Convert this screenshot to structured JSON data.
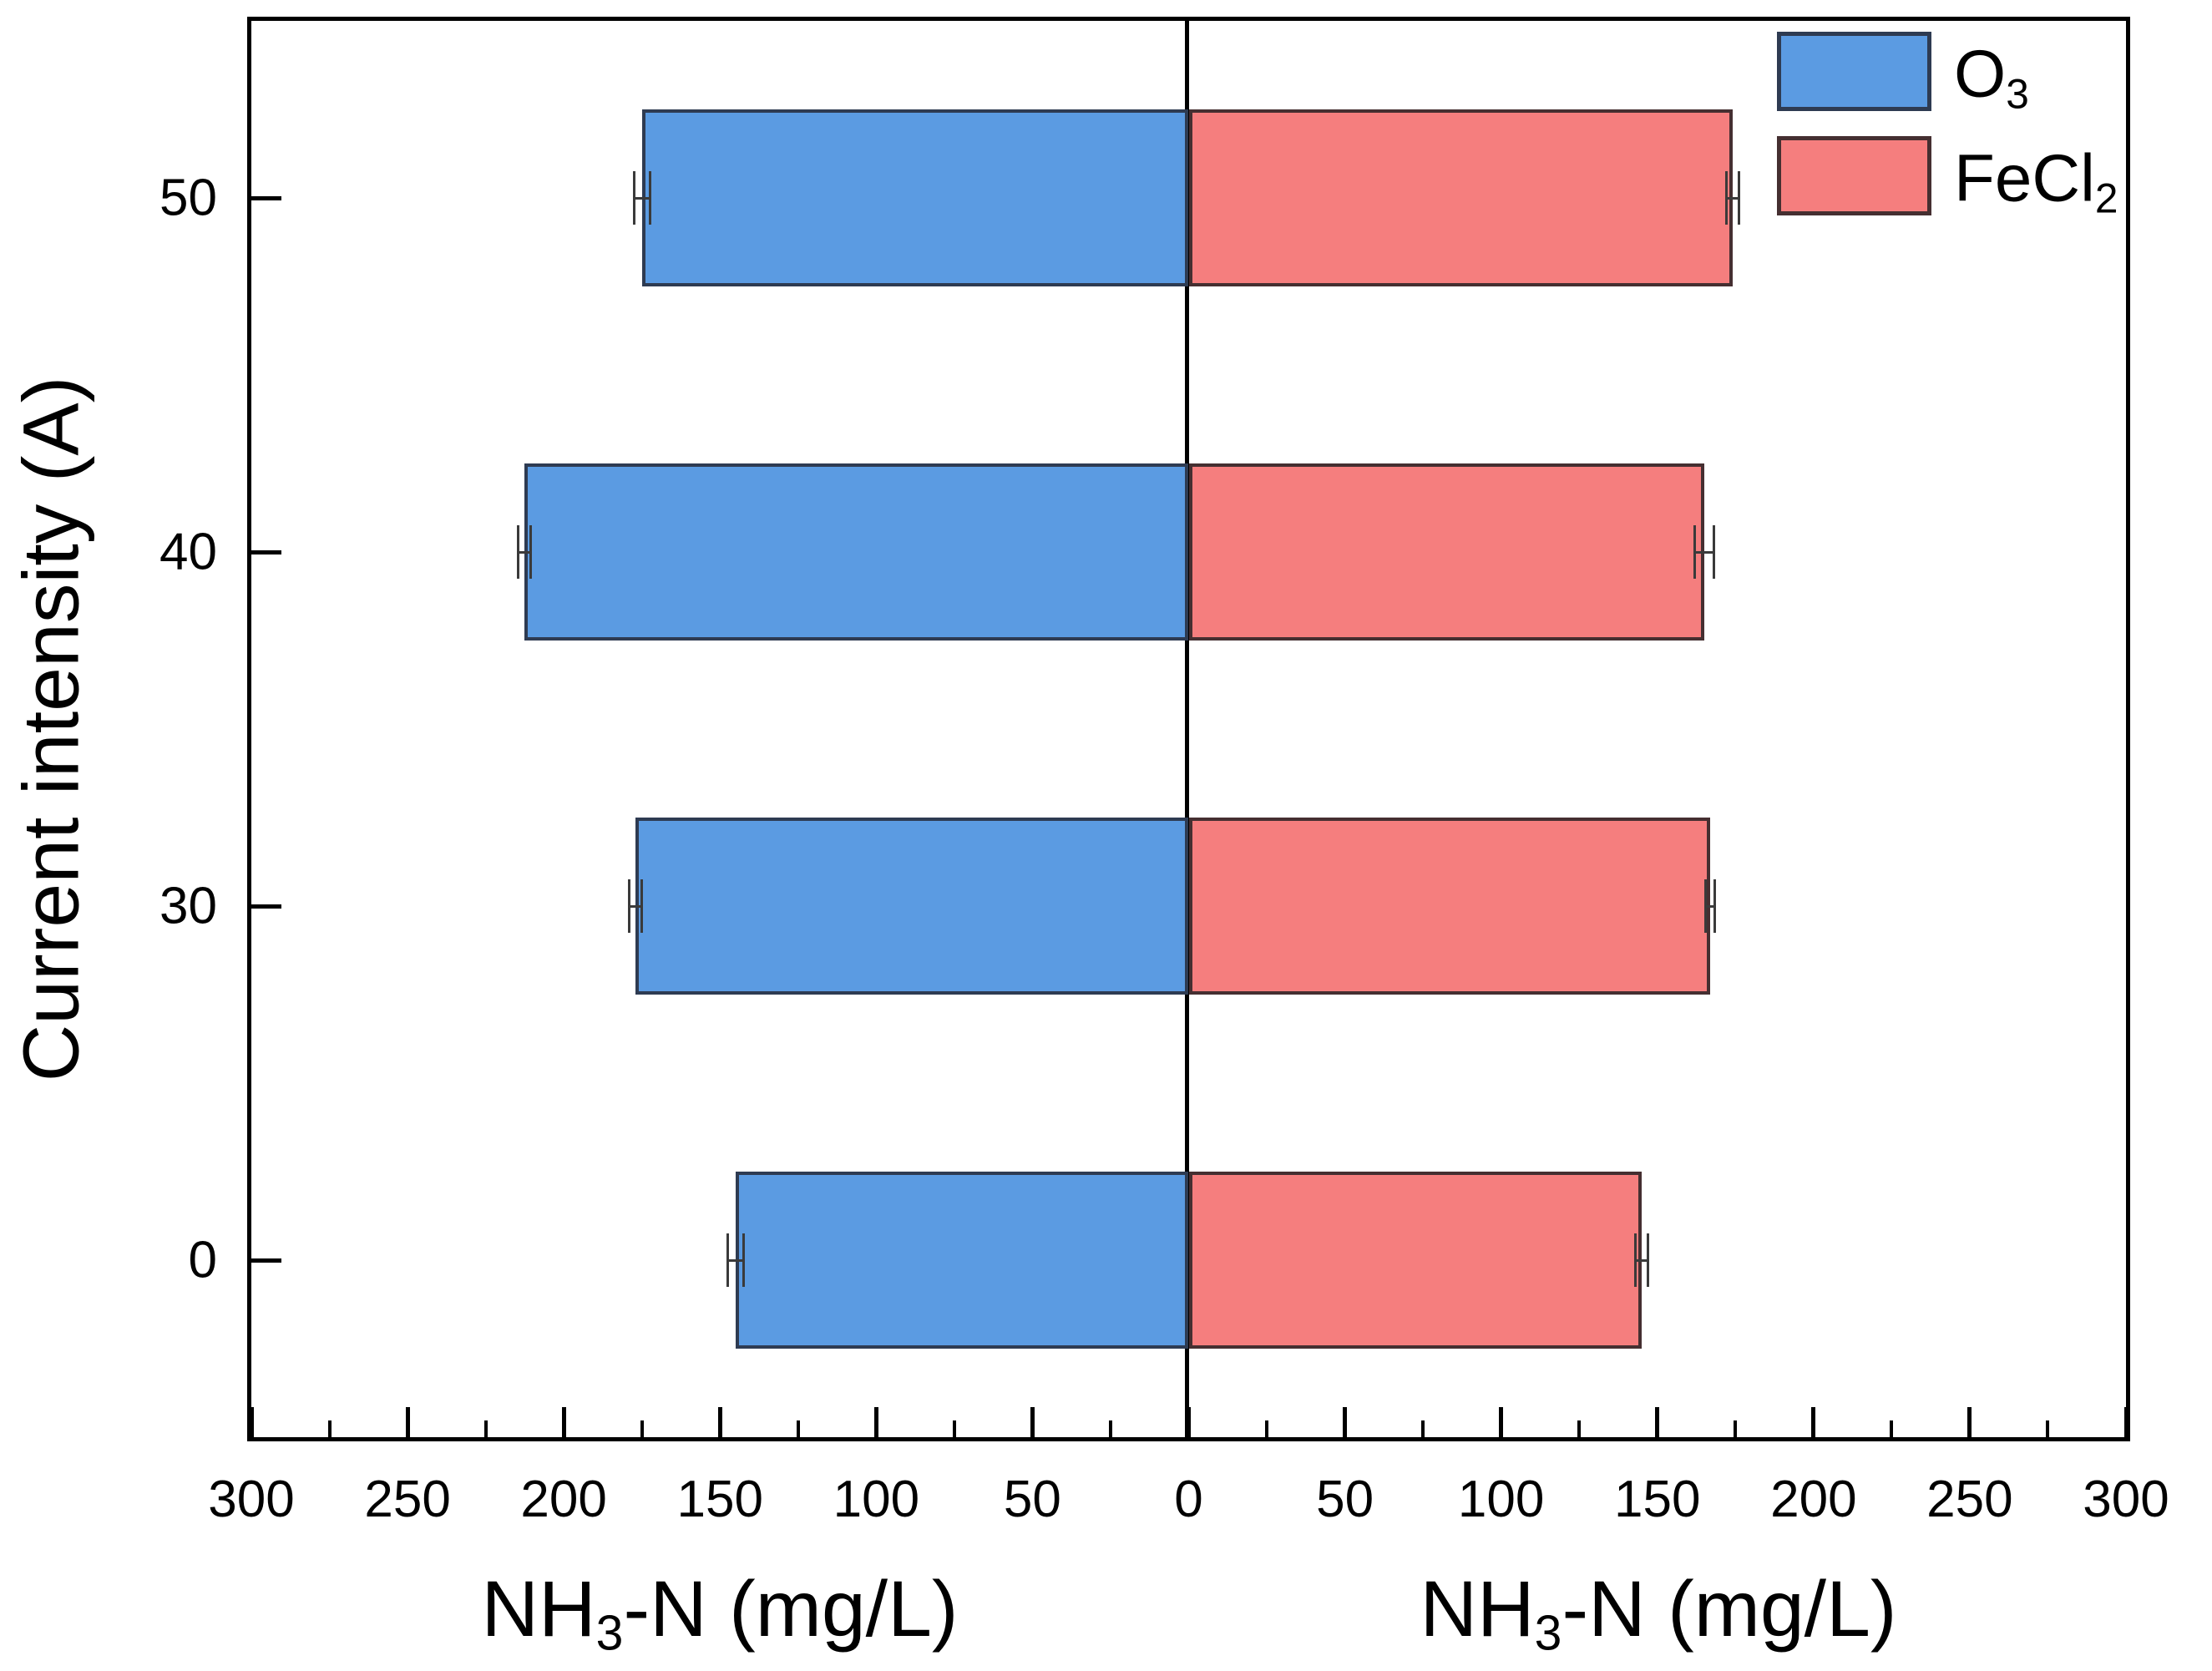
{
  "chart_data": {
    "type": "bar",
    "orientation": "diverging-horizontal",
    "categories": [
      "0",
      "30",
      "40",
      "50"
    ],
    "category_axis_title": "Current intensity (A)",
    "value_axis_title": {
      "pre": "NH",
      "sub": "3",
      "post": "-N (mg/L)"
    },
    "axis_range_each_side": [
      0,
      300
    ],
    "major_tick_step": 50,
    "minor_tick_step": 25,
    "left_tick_labels": [
      "300",
      "250",
      "200",
      "150",
      "100",
      "50"
    ],
    "center_tick_label": "0",
    "right_tick_labels": [
      "50",
      "100",
      "150",
      "200",
      "250",
      "300"
    ],
    "grid": false,
    "legend_position": "top-right",
    "series": [
      {
        "name_pre": "O",
        "name_sub": "3",
        "side": "left",
        "fill": "#5B9BE2",
        "edge": "#2E3B52",
        "values": [
          145,
          177,
          212.5,
          175
        ],
        "errors": [
          2.5,
          2,
          2,
          2.5
        ]
      },
      {
        "name_pre": "FeCl",
        "name_sub": "2",
        "side": "right",
        "fill": "#F57E7E",
        "edge": "#452F31",
        "values": [
          145,
          167,
          165,
          174
        ],
        "errors": [
          2,
          1.5,
          3,
          2
        ]
      }
    ]
  },
  "y_axis": {
    "title": "Current intensity (A)"
  },
  "x_axis_left_title": {
    "pre": "NH",
    "sub": "3",
    "post": "-N (mg/L)"
  },
  "x_axis_right_title": {
    "pre": "NH",
    "sub": "3",
    "post": "-N (mg/L)"
  },
  "legend": {
    "items": [
      {
        "pre": "O",
        "sub": "3",
        "color": "#5B9BE2",
        "edge": "#2E3B52"
      },
      {
        "pre": "FeCl",
        "sub": "2",
        "color": "#F57E7E",
        "edge": "#452F31"
      }
    ]
  },
  "colors": {
    "axis": "#000000",
    "error_bar": "#3a3a3a",
    "background": "#ffffff"
  }
}
